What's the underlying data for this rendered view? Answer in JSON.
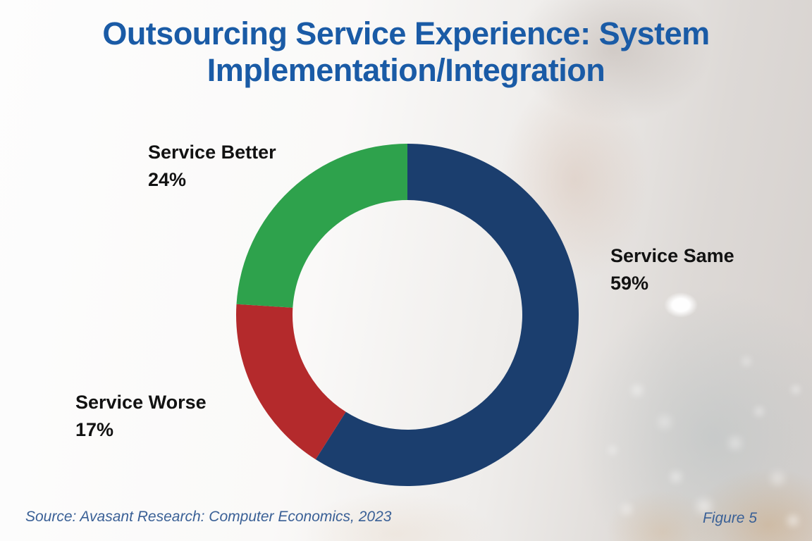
{
  "title": {
    "line1": "Outsourcing Service Experience: System",
    "line2": "Implementation/Integration",
    "color": "#1a5ba6"
  },
  "footer": {
    "source": "Source: Avasant Research: Computer Economics, 2023",
    "figure": "Figure 5",
    "color": "#3a6096"
  },
  "chart_data": {
    "type": "pie",
    "subtype": "donut",
    "title": "Outsourcing Service Experience: System Implementation/Integration",
    "direction": "clockwise",
    "start_angle_deg": 0,
    "legend_position": "callouts",
    "center": [
      578,
      447
    ],
    "outer_radius": 243,
    "inner_radius": 163,
    "segments": [
      {
        "id": "service-same",
        "label": "Service Same",
        "value": 59,
        "pct_label": "59%",
        "color": "#1b3e6e"
      },
      {
        "id": "service-worse",
        "label": "Service Worse",
        "value": 17,
        "pct_label": "17%",
        "color": "#b42a2c"
      },
      {
        "id": "service-better",
        "label": "Service Better",
        "value": 24,
        "pct_label": "24%",
        "color": "#2ea24c"
      }
    ]
  }
}
